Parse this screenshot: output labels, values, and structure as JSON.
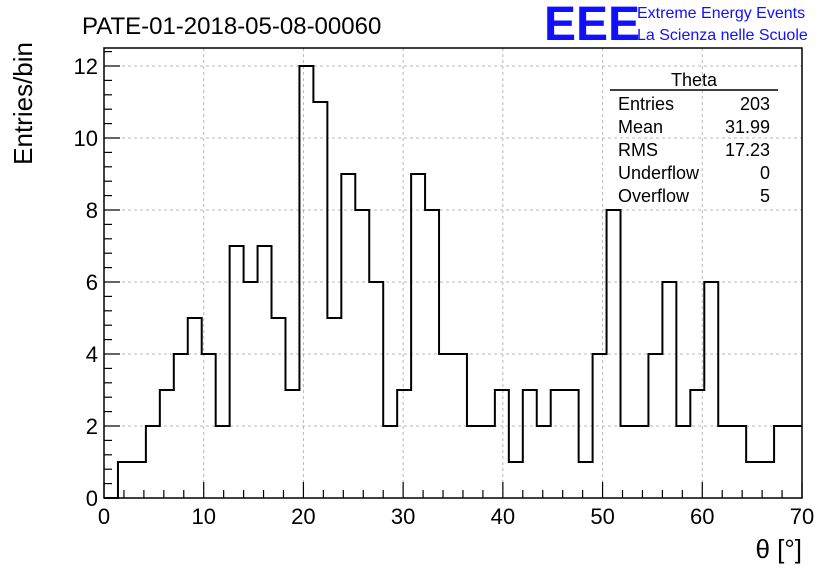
{
  "logo": {
    "mark": "EEE",
    "line1": "Extreme Energy Events",
    "line2": "La Scienza nelle Scuole",
    "color": "#1010ff"
  },
  "chart_data": {
    "type": "bar",
    "title": "PATE-01-2018-05-08-00060",
    "xlabel": "θ [°]",
    "ylabel": "Entries/bin",
    "xlim": [
      0,
      70
    ],
    "ylim": [
      0,
      12.5
    ],
    "xticks": [
      0,
      10,
      20,
      30,
      40,
      50,
      60,
      70
    ],
    "yticks": [
      0,
      2,
      4,
      6,
      8,
      10,
      12
    ],
    "grid": true,
    "bin_width": 1.4,
    "bin_start": 0,
    "values": [
      0,
      1,
      1,
      2,
      3,
      4,
      5,
      4,
      2,
      7,
      6,
      7,
      5,
      3,
      12,
      11,
      5,
      9,
      8,
      6,
      2,
      3,
      9,
      8,
      4,
      4,
      2,
      2,
      3,
      1,
      3,
      2,
      3,
      3,
      1,
      4,
      8,
      2,
      2,
      4,
      6,
      2,
      3,
      6,
      2,
      2,
      1,
      1,
      2,
      2
    ],
    "line_color": "#000000",
    "stats_box": {
      "name": "Theta",
      "position": "top-right",
      "rows": [
        {
          "label": "Entries",
          "value": "203"
        },
        {
          "label": "Mean",
          "value": "31.99"
        },
        {
          "label": "RMS",
          "value": "17.23"
        },
        {
          "label": "Underflow",
          "value": "0"
        },
        {
          "label": "Overflow",
          "value": "5"
        }
      ]
    }
  }
}
